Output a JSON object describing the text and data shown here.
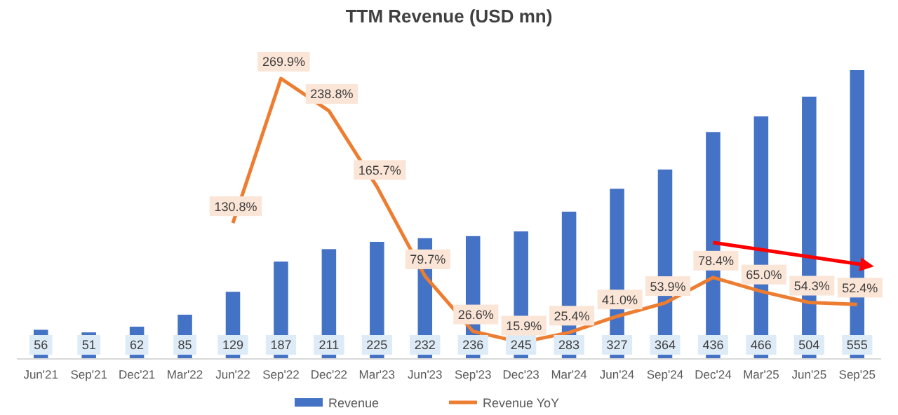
{
  "chart_data": {
    "type": "bar",
    "title": "TTM Revenue (USD mn)",
    "categories": [
      "Jun'21",
      "Sep'21",
      "Dec'21",
      "Mar'22",
      "Jun'22",
      "Sep'22",
      "Dec'22",
      "Mar'23",
      "Jun'23",
      "Sep'23",
      "Dec'23",
      "Mar'24",
      "Jun'24",
      "Sep'24",
      "Dec'24",
      "Mar'25",
      "Jun'25",
      "Sep'25"
    ],
    "series": [
      {
        "name": "Revenue",
        "color": "#4472c4",
        "values": [
          56,
          51,
          62,
          85,
          129,
          187,
          211,
          225,
          232,
          236,
          245,
          283,
          327,
          364,
          436,
          466,
          504,
          555
        ],
        "value_labels": [
          "56",
          "51",
          "62",
          "85",
          "129",
          "187",
          "211",
          "225",
          "232",
          "236",
          "245",
          "283",
          "327",
          "364",
          "436",
          "466",
          "504",
          "555"
        ]
      },
      {
        "name": "Revenue YoY",
        "type": "line",
        "axis": "y2",
        "color": "#ed7d31",
        "values": [
          null,
          null,
          null,
          null,
          130.8,
          269.9,
          238.8,
          165.7,
          79.7,
          26.6,
          15.9,
          25.4,
          41.0,
          53.9,
          78.4,
          65.0,
          54.3,
          52.4
        ],
        "value_labels": [
          null,
          null,
          null,
          null,
          "130.8%",
          "269.9%",
          "238.8%",
          "165.7%",
          "79.7%",
          "26.6%",
          "15.9%",
          "25.4%",
          "41.0%",
          "53.9%",
          "78.4%",
          "65.0%",
          "54.3%",
          "52.4%"
        ]
      }
    ],
    "legend": "bottom",
    "marker": "none",
    "line_style": "solid"
  }
}
